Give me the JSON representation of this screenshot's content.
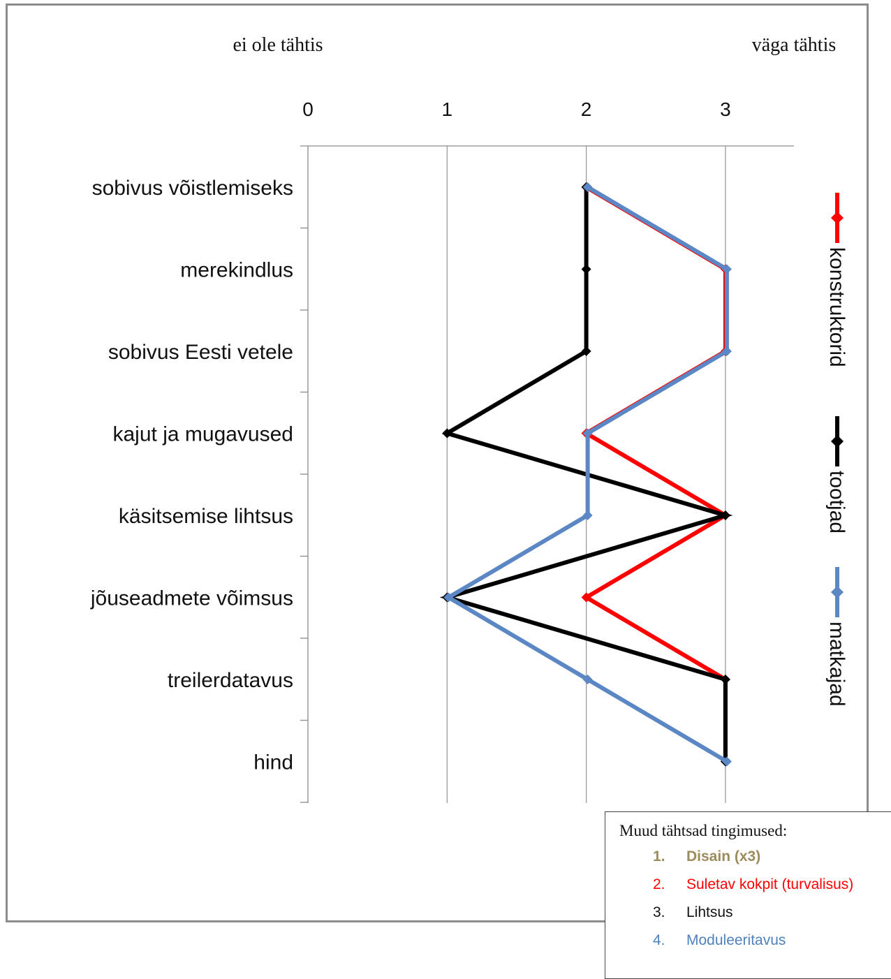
{
  "chart_data": {
    "type": "line",
    "orientation": "horizontal",
    "header_left": "ei ole tähtis",
    "header_right": "väga tähtis",
    "x_ticks": [
      0,
      1,
      2,
      3
    ],
    "xlim": [
      0,
      3.5
    ],
    "categories": [
      "sobivus võistlemiseks",
      "merekindlus",
      "sobivus Eesti vetele",
      "kajut ja mugavused",
      "käsitsemise lihtsus",
      "jõuseadmete võimsus",
      "treilerdatavus",
      "hind"
    ],
    "series": [
      {
        "name": "konstruktorid",
        "color": "#ff0000",
        "values": [
          2,
          3,
          3,
          2,
          3,
          2,
          3,
          3
        ]
      },
      {
        "name": "tootjad",
        "color": "#000000",
        "values": [
          2,
          2,
          2,
          1,
          3,
          1,
          3,
          3
        ]
      },
      {
        "name": "matkajad",
        "color": "#5b87c5",
        "values": [
          2,
          3,
          3,
          2,
          2,
          1,
          2,
          3
        ]
      }
    ],
    "grid": "vertical",
    "legend_position": "right, vertical"
  },
  "note": {
    "title": "Muud tähtsad tingimused:",
    "items": [
      {
        "num": "1.",
        "text": "Disain (x3)",
        "color": "#9c8b5c",
        "bold": true
      },
      {
        "num": "2.",
        "text": "Suletav kokpit (turvalisus)",
        "color": "#ff0000",
        "bold": false
      },
      {
        "num": "3.",
        "text": "Lihtsus",
        "color": "#111111",
        "bold": false
      },
      {
        "num": "4.",
        "text": "Moduleeritavus",
        "color": "#4f81bd",
        "bold": false
      }
    ]
  }
}
